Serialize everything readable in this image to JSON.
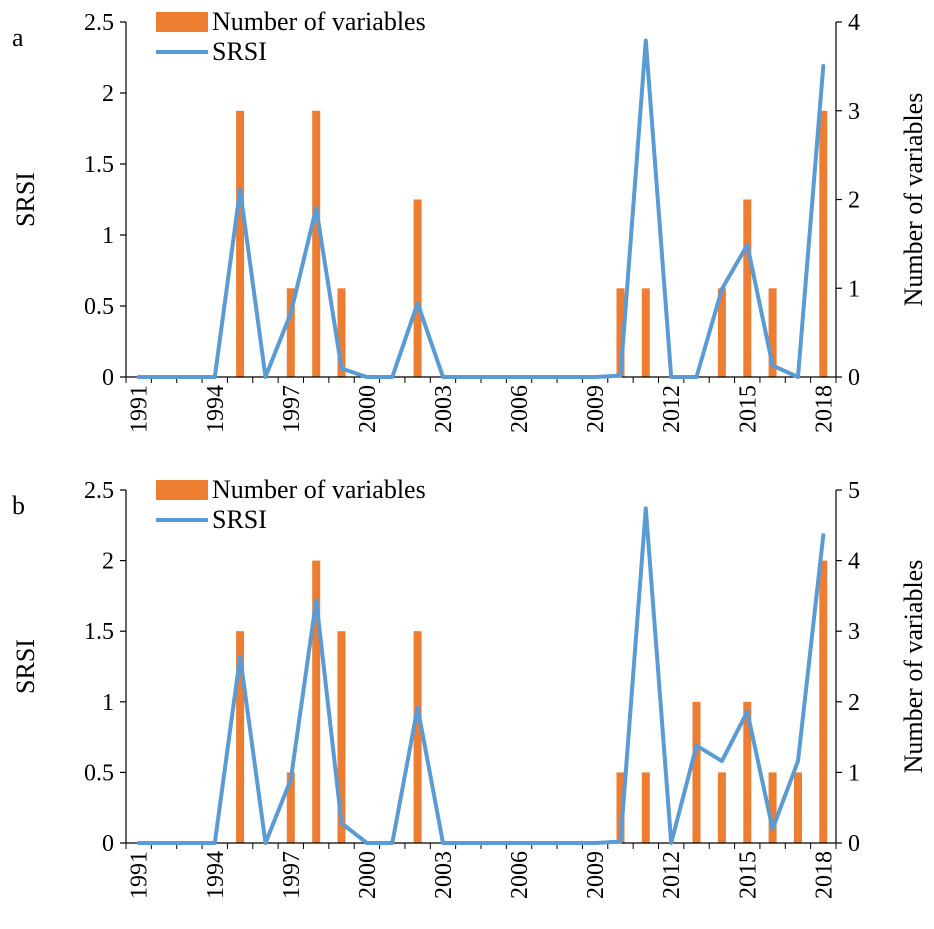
{
  "chart_data": [
    {
      "type": "bar+line",
      "panel_label": "a",
      "years": [
        1991,
        1992,
        1993,
        1994,
        1995,
        1996,
        1997,
        1998,
        1999,
        2000,
        2001,
        2002,
        2003,
        2004,
        2005,
        2006,
        2007,
        2008,
        2009,
        2010,
        2011,
        2012,
        2013,
        2014,
        2015,
        2016,
        2017,
        2018
      ],
      "x_tick_labels": [
        "1991",
        "1994",
        "1997",
        "2000",
        "2003",
        "2006",
        "2009",
        "2012",
        "2015",
        "2018"
      ],
      "left_axis": {
        "label": "SRSI",
        "ylim": [
          0,
          2.5
        ],
        "ticks": [
          "0",
          "0.5",
          "1",
          "1.5",
          "2",
          "2.5"
        ]
      },
      "right_axis": {
        "label": "Number of variables",
        "ylim": [
          0,
          4
        ],
        "ticks": [
          "0",
          "1",
          "2",
          "3",
          "4"
        ]
      },
      "legend": [
        "Number of variables",
        "SRSI"
      ],
      "series": [
        {
          "name": "Number of variables",
          "kind": "bar",
          "axis": "right",
          "color": "#ED7D31",
          "values": [
            0,
            0,
            0,
            0,
            3,
            0,
            1,
            3,
            1,
            0,
            0,
            2,
            0,
            0,
            0,
            0,
            0,
            0,
            0,
            1,
            1,
            0,
            0,
            1,
            2,
            1,
            0,
            3
          ]
        },
        {
          "name": "SRSI",
          "kind": "line",
          "axis": "left",
          "color": "#5B9BD5",
          "values": [
            0,
            0,
            0,
            0,
            1.32,
            0,
            0.45,
            1.19,
            0.06,
            0,
            0,
            0.52,
            0,
            0,
            0,
            0,
            0,
            0,
            0,
            0.01,
            2.37,
            0,
            0,
            0.62,
            0.93,
            0.08,
            0,
            2.19
          ]
        }
      ]
    },
    {
      "type": "bar+line",
      "panel_label": "b",
      "years": [
        1991,
        1992,
        1993,
        1994,
        1995,
        1996,
        1997,
        1998,
        1999,
        2000,
        2001,
        2002,
        2003,
        2004,
        2005,
        2006,
        2007,
        2008,
        2009,
        2010,
        2011,
        2012,
        2013,
        2014,
        2015,
        2016,
        2017,
        2018
      ],
      "x_tick_labels": [
        "1991",
        "1994",
        "1997",
        "2000",
        "2003",
        "2006",
        "2009",
        "2012",
        "2015",
        "2018"
      ],
      "left_axis": {
        "label": "SRSI",
        "ylim": [
          0,
          2.5
        ],
        "ticks": [
          "0",
          "0.5",
          "1",
          "1.5",
          "2",
          "2.5"
        ]
      },
      "right_axis": {
        "label": "Number of variables",
        "ylim": [
          0,
          5
        ],
        "ticks": [
          "0",
          "1",
          "2",
          "3",
          "4",
          "5"
        ]
      },
      "legend": [
        "Number of variables",
        "SRSI"
      ],
      "series": [
        {
          "name": "Number of variables",
          "kind": "bar",
          "axis": "right",
          "color": "#ED7D31",
          "values": [
            0,
            0,
            0,
            0,
            3,
            0,
            1,
            4,
            3,
            0,
            0,
            3,
            0,
            0,
            0,
            0,
            0,
            0,
            0,
            1,
            1,
            0,
            2,
            1,
            2,
            1,
            1,
            4
          ]
        },
        {
          "name": "SRSI",
          "kind": "line",
          "axis": "left",
          "color": "#5B9BD5",
          "values": [
            0,
            0,
            0,
            0,
            1.32,
            0,
            0.45,
            1.72,
            0.14,
            0,
            0,
            0.96,
            0,
            0,
            0,
            0,
            0,
            0,
            0,
            0.01,
            2.37,
            0,
            0.69,
            0.58,
            0.93,
            0.1,
            0.58,
            2.18
          ]
        }
      ]
    }
  ]
}
